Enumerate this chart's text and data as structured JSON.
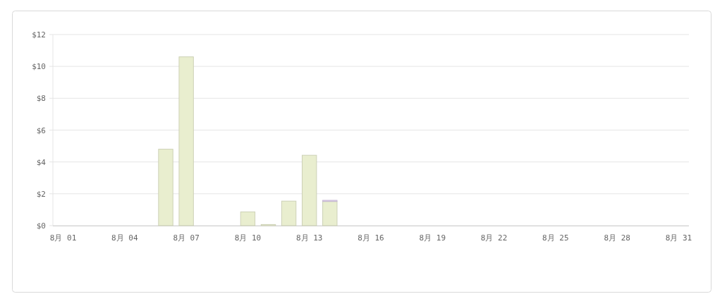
{
  "chart_data": {
    "type": "bar",
    "stacked": true,
    "categories": [
      "8月 01",
      null,
      null,
      "8月 04",
      null,
      null,
      "8月 07",
      null,
      null,
      "8月 10",
      null,
      null,
      "8月 13",
      null,
      null,
      "8月 16",
      null,
      null,
      "8月 19",
      null,
      null,
      "8月 22",
      null,
      null,
      "8月 25",
      null,
      null,
      "8月 28",
      null,
      null,
      "8月 31"
    ],
    "series": [
      {
        "color": "#e9eecf",
        "values": [
          null,
          null,
          null,
          null,
          null,
          4.8,
          10.6,
          null,
          null,
          0.86,
          0.07,
          1.54,
          4.42,
          1.52,
          null,
          null,
          null,
          null,
          null,
          null,
          null,
          null,
          null,
          null,
          null,
          null,
          null,
          null,
          null,
          null,
          null
        ]
      },
      {
        "color": "#e1d0f0",
        "values": [
          null,
          null,
          null,
          null,
          null,
          null,
          null,
          null,
          null,
          null,
          null,
          null,
          null,
          0.07,
          null,
          null,
          null,
          null,
          null,
          null,
          null,
          null,
          null,
          null,
          null,
          null,
          null,
          null,
          null,
          null,
          null
        ]
      }
    ],
    "ylim": [
      0,
      12
    ],
    "yticks": [
      {
        "value": 0,
        "label": "$0"
      },
      {
        "value": 2,
        "label": "$2"
      },
      {
        "value": 4,
        "label": "$4"
      },
      {
        "value": 6,
        "label": "$6"
      },
      {
        "value": 8,
        "label": "$8"
      },
      {
        "value": 10,
        "label": "$10"
      },
      {
        "value": 12,
        "label": "$12"
      }
    ],
    "grid": "y"
  }
}
